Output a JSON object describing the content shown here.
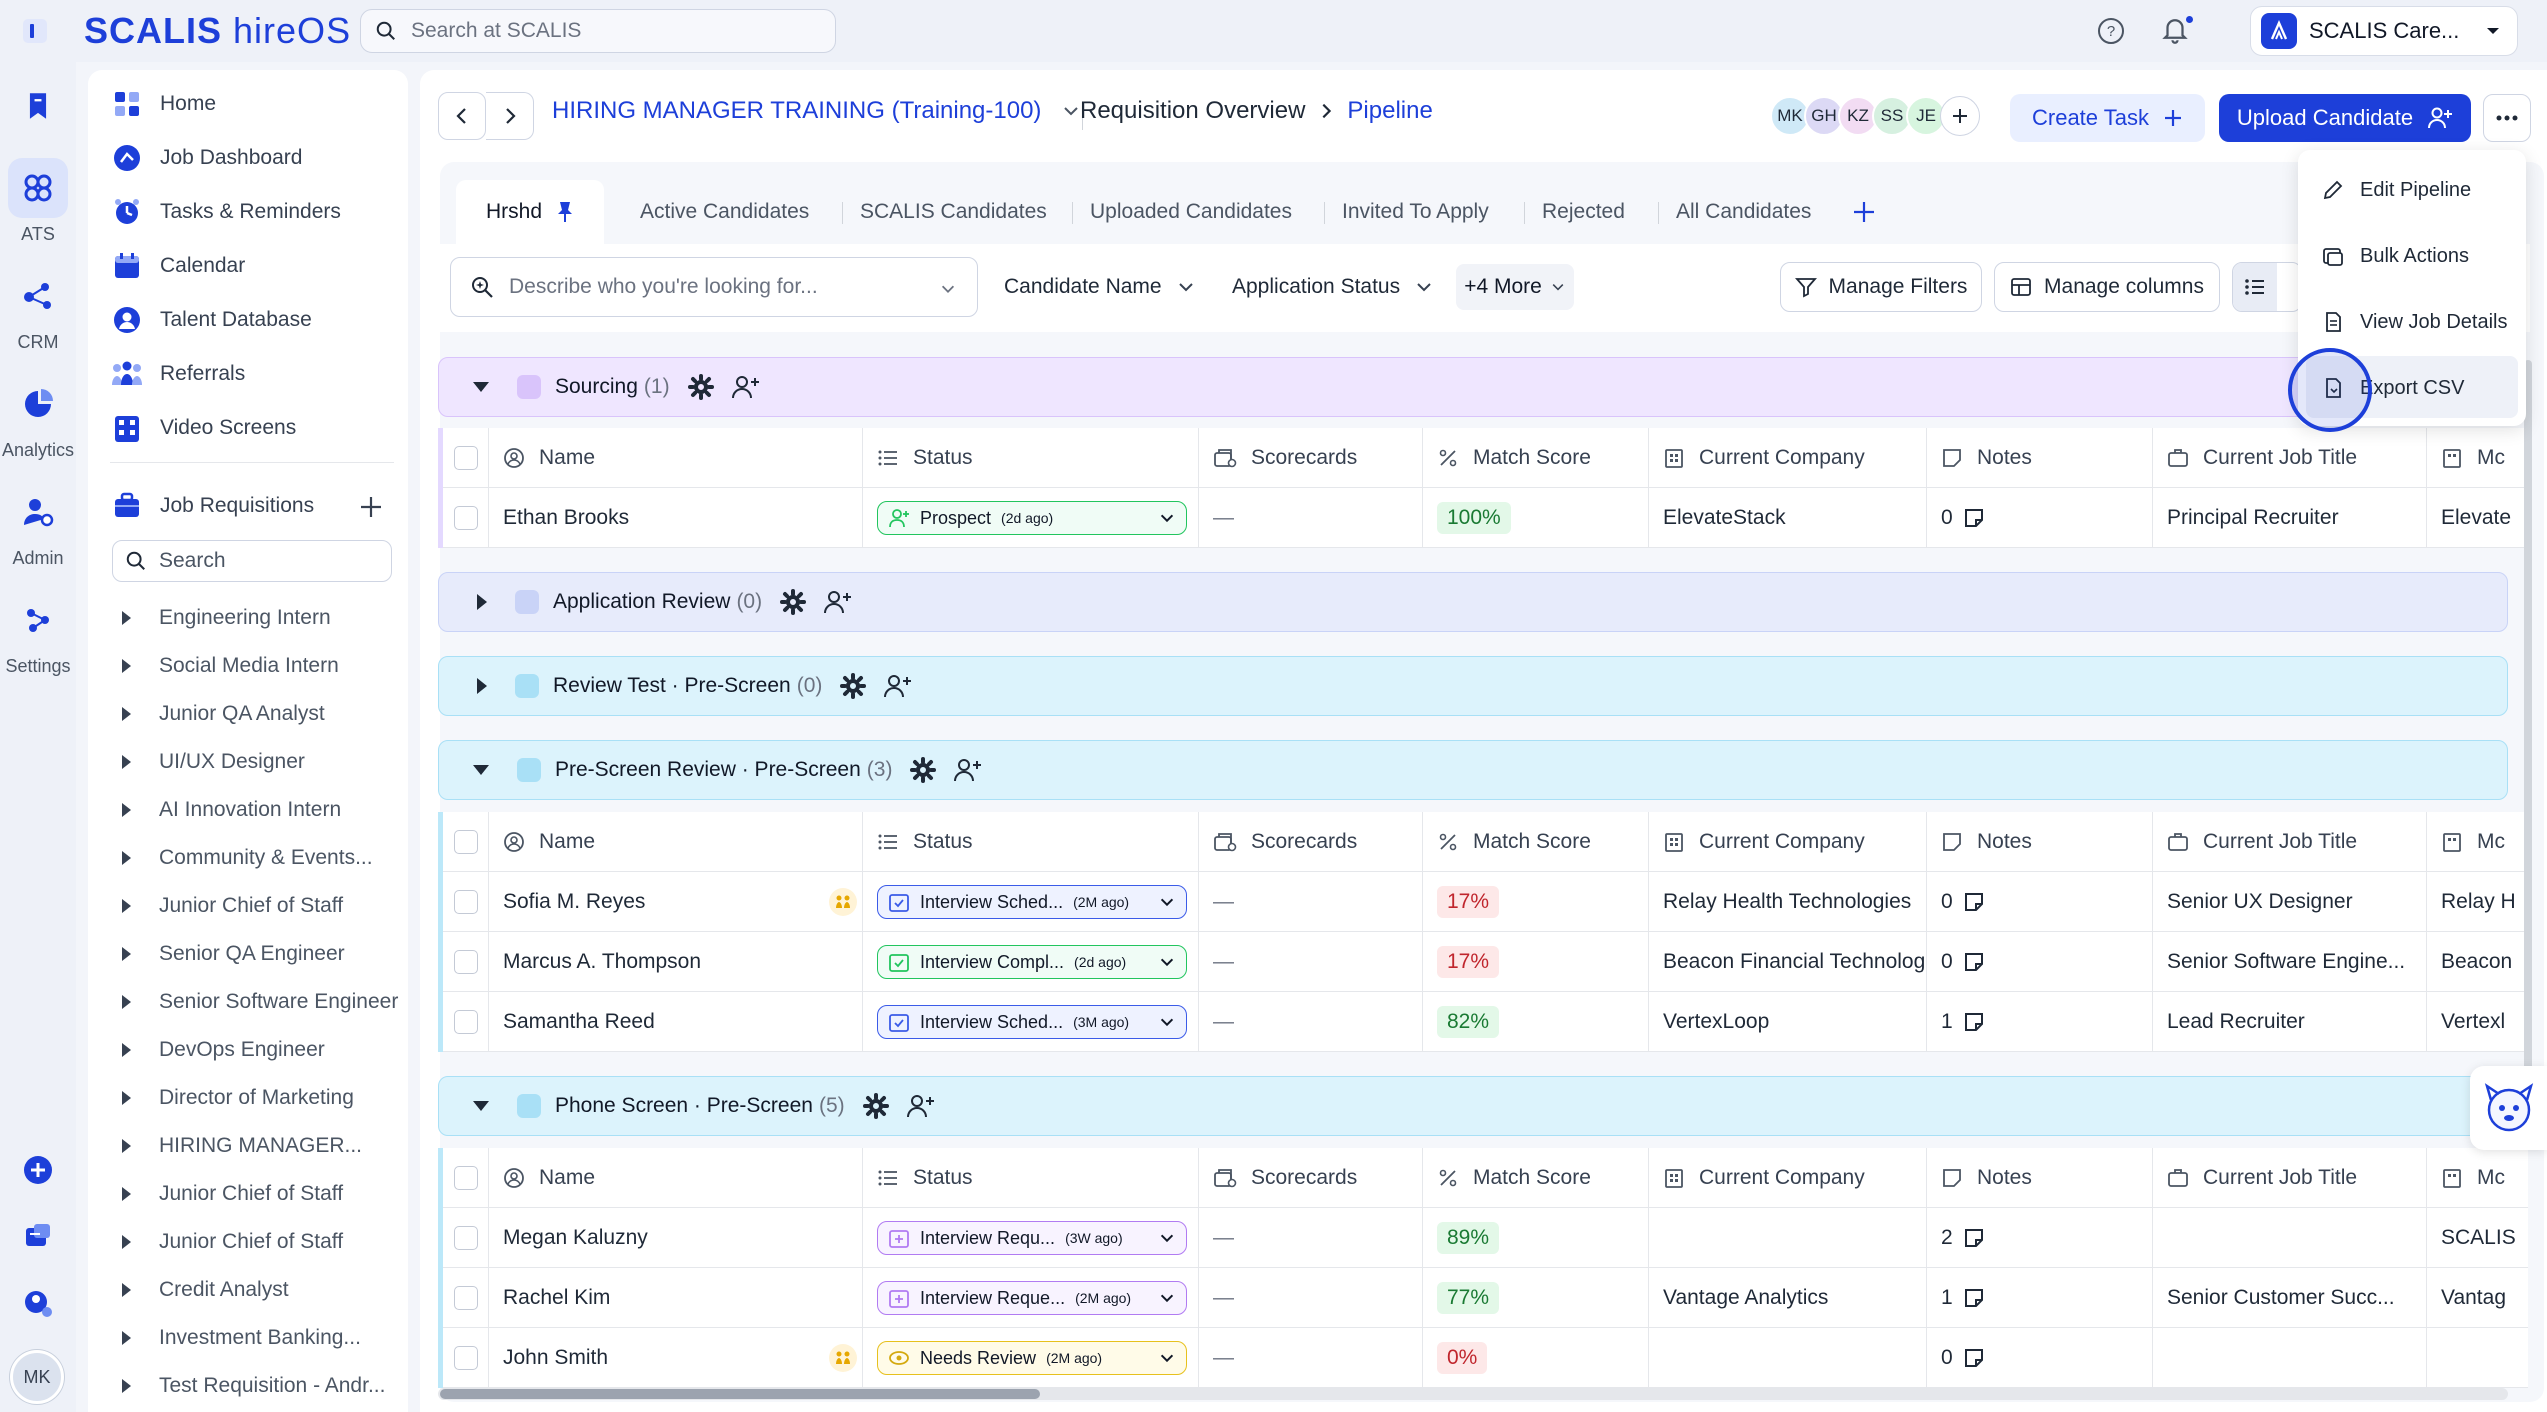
{
  "app": {
    "brand": "SCALIS",
    "brand_suffix": "hireOS",
    "search_placeholder": "Search at SCALIS",
    "org_name": "SCALIS Care..."
  },
  "rail": {
    "items": [
      {
        "label": "",
        "icon": "bookmark-icon"
      },
      {
        "label": "ATS",
        "icon": "ats-icon"
      },
      {
        "label": "CRM",
        "icon": "crm-icon"
      },
      {
        "label": "Analytics",
        "icon": "analytics-icon"
      },
      {
        "label": "Admin",
        "icon": "admin-icon"
      },
      {
        "label": "Settings",
        "icon": "settings-icon"
      }
    ],
    "user_initials": "MK"
  },
  "sidebar": {
    "nav": [
      {
        "label": "Home",
        "icon": "home-icon"
      },
      {
        "label": "Job Dashboard",
        "icon": "dashboard-icon"
      },
      {
        "label": "Tasks & Reminders",
        "icon": "alarm-icon"
      },
      {
        "label": "Calendar",
        "icon": "calendar-icon"
      },
      {
        "label": "Talent Database",
        "icon": "user-icon"
      },
      {
        "label": "Referrals",
        "icon": "referrals-icon"
      },
      {
        "label": "Video Screens",
        "icon": "video-icon"
      }
    ],
    "job_requisitions_label": "Job Requisitions",
    "search_placeholder": "Search",
    "requisitions": [
      "Engineering Intern",
      "Social Media Intern",
      "Junior QA Analyst",
      "UI/UX Designer",
      "AI Innovation Intern",
      "Community & Events...",
      "Junior Chief of Staff",
      "Senior QA Engineer",
      "Senior Software Engineer",
      "DevOps Engineer",
      "Director of Marketing",
      "HIRING MANAGER...",
      "Junior Chief of Staff",
      "Junior Chief of Staff",
      "Credit Analyst",
      "Investment Banking...",
      "Test Requisition - Andr..."
    ]
  },
  "header": {
    "job_title": "HIRING MANAGER TRAINING (Training-100)",
    "breadcrumb_1": "Requisition Overview",
    "breadcrumb_2": "Pipeline",
    "avatars": [
      {
        "initials": "MK",
        "color": "#cfe9f7"
      },
      {
        "initials": "GH",
        "color": "#dcd9f5"
      },
      {
        "initials": "KZ",
        "color": "#f2dcf3"
      },
      {
        "initials": "SS",
        "color": "#d6f0e0"
      },
      {
        "initials": "JE",
        "color": "#d7f5df"
      }
    ],
    "create_task": "Create Task",
    "upload_candidate": "Upload Candidate"
  },
  "tabs": {
    "active": "Hrshd",
    "items": [
      "Active Candidates",
      "SCALIS Candidates",
      "Uploaded Candidates",
      "Invited To Apply",
      "Rejected",
      "All Candidates"
    ]
  },
  "toolbar": {
    "describe_placeholder": "Describe who you're looking for...",
    "filter_candidate_name": "Candidate Name",
    "filter_application_status": "Application Status",
    "more_filters": "+4 More",
    "manage_filters": "Manage Filters",
    "manage_columns": "Manage columns"
  },
  "context_menu": {
    "items": [
      "Edit Pipeline",
      "Bulk Actions",
      "View Job Details",
      "Export CSV"
    ]
  },
  "columns": {
    "name": "Name",
    "status": "Status",
    "scorecards": "Scorecards",
    "match_score": "Match Score",
    "current_company": "Current Company",
    "notes": "Notes",
    "current_job_title": "Current Job Title",
    "next": "Mc"
  },
  "stages": [
    {
      "name": "Sourcing",
      "count": "(1)",
      "color": "#efe6ff",
      "sq": "#d9c4fb"
    },
    {
      "name": "Application Review",
      "count": "(0)",
      "color": "#e7ebfb",
      "sq": "#c9d3f7"
    },
    {
      "name": "Review Test · Pre-Screen",
      "count": "(0)",
      "color": "#dcf3fc",
      "sq": "#a9e0f6"
    },
    {
      "name": "Pre-Screen Review · Pre-Screen",
      "count": "(3)",
      "color": "#dcf3fc",
      "sq": "#a9e0f6"
    },
    {
      "name": "Phone Screen · Pre-Screen",
      "count": "(5)",
      "color": "#dcf3fc",
      "sq": "#a9e0f6"
    }
  ],
  "sourcing_rows": [
    {
      "name": "Ethan Brooks",
      "status": "Prospect",
      "ago": "(2d ago)",
      "pill": "green",
      "scorecard": "—",
      "score": "100%",
      "score_kind": "good",
      "company": "ElevateStack",
      "notes": "0",
      "title": "Principal Recruiter",
      "next": "Elevate"
    }
  ],
  "prescreen_rows": [
    {
      "name": "Sofia M. Reyes",
      "tag": true,
      "status": "Interview Sched...",
      "ago": "(2M ago)",
      "pill": "blue",
      "scorecard": "—",
      "score": "17%",
      "score_kind": "bad",
      "company": "Relay Health Technologies",
      "notes": "0",
      "title": "Senior UX Designer",
      "next": "Relay H"
    },
    {
      "name": "Marcus A. Thompson",
      "tag": false,
      "status": "Interview Compl...",
      "ago": "(2d ago)",
      "pill": "green",
      "scorecard": "—",
      "score": "17%",
      "score_kind": "bad",
      "company": "Beacon Financial Technolog",
      "notes": "0",
      "title": "Senior Software Engine...",
      "next": "Beacon"
    },
    {
      "name": "Samantha Reed",
      "tag": false,
      "status": "Interview Sched...",
      "ago": "(3M ago)",
      "pill": "blue",
      "scorecard": "—",
      "score": "82%",
      "score_kind": "good",
      "company": "VertexLoop",
      "notes": "1",
      "title": "Lead Recruiter",
      "next": "Vertexl"
    }
  ],
  "phone_rows": [
    {
      "name": "Megan Kaluzny",
      "tag": false,
      "status": "Interview Requ...",
      "ago": "(3W ago)",
      "pill": "purple",
      "scorecard": "—",
      "score": "89%",
      "score_kind": "good",
      "company": "",
      "notes": "2",
      "title": "",
      "next": "SCALIS"
    },
    {
      "name": "Rachel Kim",
      "tag": false,
      "status": "Interview Reque...",
      "ago": "(2M ago)",
      "pill": "purple",
      "scorecard": "—",
      "score": "77%",
      "score_kind": "good",
      "company": "Vantage Analytics",
      "notes": "1",
      "title": "Senior Customer Succ...",
      "next": "Vantag"
    },
    {
      "name": "John Smith",
      "tag": true,
      "status": "Needs Review",
      "ago": "(2M ago)",
      "pill": "yellow",
      "scorecard": "—",
      "score": "0%",
      "score_kind": "bad",
      "company": "",
      "notes": "0",
      "title": "",
      "next": ""
    }
  ]
}
